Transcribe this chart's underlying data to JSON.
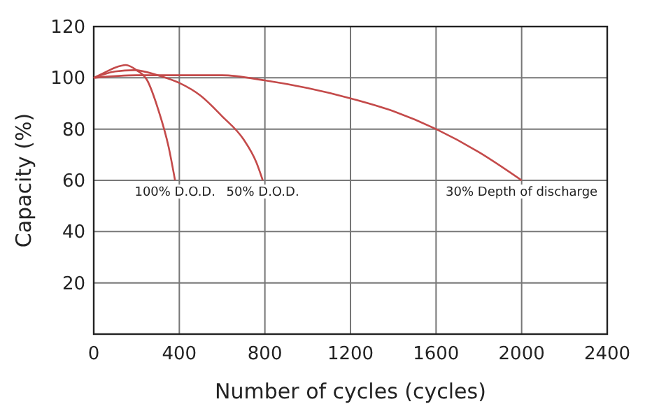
{
  "chart_data": {
    "type": "line",
    "xlabel": "Number of cycles (cycles)",
    "ylabel": "Capacity (%)",
    "xlim": [
      0,
      2400
    ],
    "xticks": [
      0,
      400,
      800,
      1200,
      1600,
      2000,
      2400
    ],
    "ylim": [
      0,
      120
    ],
    "yticks": [
      {
        "value": 0,
        "label": null
      },
      20,
      40,
      60,
      80,
      100,
      120
    ],
    "grid": true,
    "marker": "none",
    "line_style": "solid",
    "series": [
      {
        "name": "100% D.O.D.",
        "color": "#c44a4a",
        "x": [
          0,
          50,
          100,
          150,
          200,
          250,
          300,
          350,
          380
        ],
        "values": [
          100,
          102,
          104,
          105,
          103,
          99,
          88,
          73,
          60
        ]
      },
      {
        "name": "50% D.O.D.",
        "color": "#c44a4a",
        "x": [
          0,
          100,
          190,
          300,
          400,
          500,
          600,
          700,
          760,
          790
        ],
        "values": [
          100,
          102.5,
          103,
          101,
          98,
          93,
          85,
          76,
          67,
          60
        ]
      },
      {
        "name": "30% Depth of discharge",
        "color": "#c44a4a",
        "x": [
          0,
          200,
          600,
          800,
          1000,
          1200,
          1400,
          1600,
          1800,
          2000
        ],
        "values": [
          100,
          101,
          101,
          99,
          96,
          92,
          87,
          80,
          71,
          60
        ]
      }
    ]
  }
}
